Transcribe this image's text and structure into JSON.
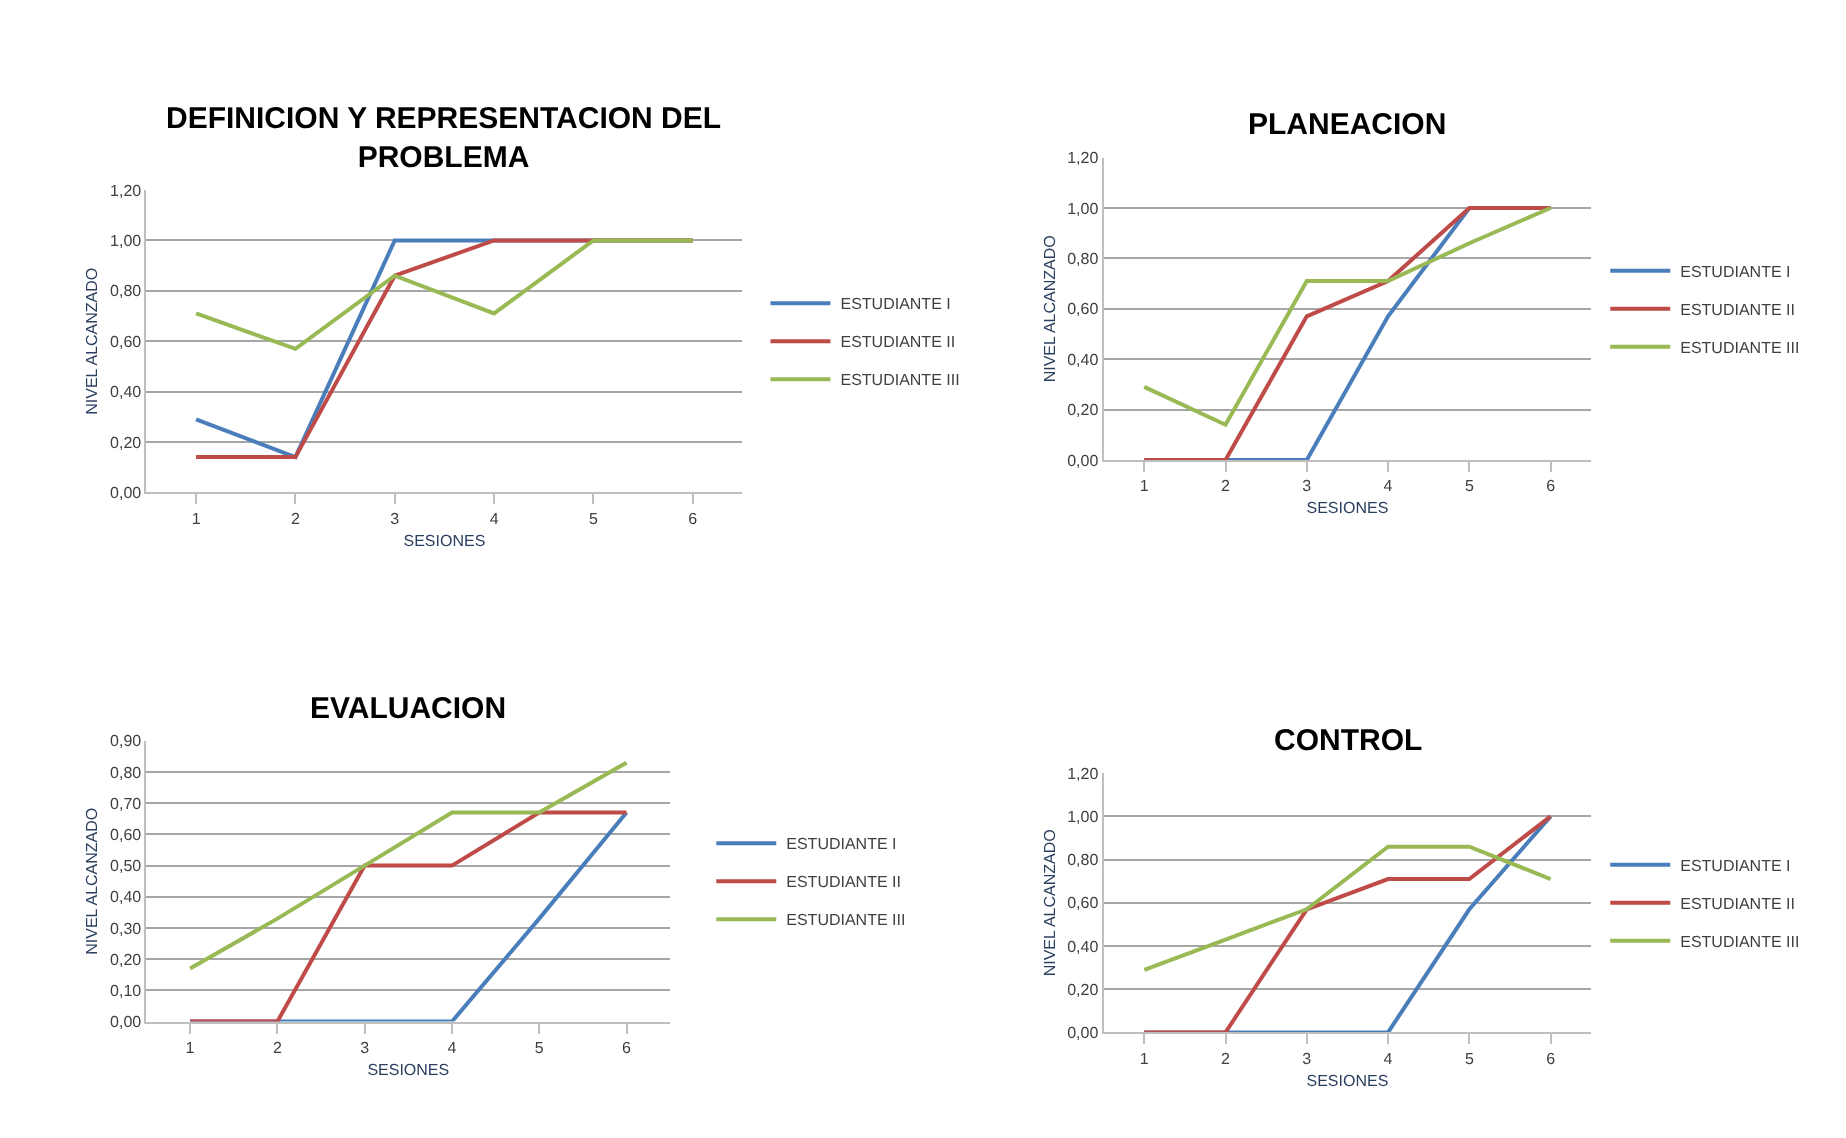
{
  "chart_data": [
    {
      "type": "line",
      "title": "DEFINICION Y REPRESENTACION DEL PROBLEMA",
      "xlabel": "SESIONES",
      "ylabel": "NIVEL ALCANZADO",
      "categories": [
        "1",
        "2",
        "3",
        "4",
        "5",
        "6"
      ],
      "ylim": [
        0,
        1.2
      ],
      "yticks": [
        {
          "value": 0,
          "label": "0,00"
        },
        {
          "value": 0.2,
          "label": "0,20"
        },
        {
          "value": 0.4,
          "label": "0,40"
        },
        {
          "value": 0.6,
          "label": "0,60"
        },
        {
          "value": 0.8,
          "label": "0,80"
        },
        {
          "value": 1.0,
          "label": "1,00"
        },
        {
          "value": 1.2,
          "label": "1,20"
        }
      ],
      "grid": "y",
      "legend": "right",
      "marker": "none",
      "series": [
        {
          "name": "ESTUDIANTE I",
          "color": "#4a7ebb",
          "values": [
            0.29,
            0.14,
            1.0,
            1.0,
            1.0,
            1.0
          ]
        },
        {
          "name": "ESTUDIANTE II",
          "color": "#be4b48",
          "values": [
            0.14,
            0.14,
            0.86,
            1.0,
            1.0,
            1.0
          ]
        },
        {
          "name": "ESTUDIANTE III",
          "color": "#98b954",
          "values": [
            0.71,
            0.57,
            0.86,
            0.71,
            1.0,
            1.0
          ]
        }
      ]
    },
    {
      "type": "line",
      "title": "PLANEACION",
      "xlabel": "SESIONES",
      "ylabel": "NIVEL ALCANZADO",
      "categories": [
        "1",
        "2",
        "3",
        "4",
        "5",
        "6"
      ],
      "ylim": [
        0,
        1.2
      ],
      "yticks": [
        {
          "value": 0,
          "label": "0,00"
        },
        {
          "value": 0.2,
          "label": "0,20"
        },
        {
          "value": 0.4,
          "label": "0,40"
        },
        {
          "value": 0.6,
          "label": "0,60"
        },
        {
          "value": 0.8,
          "label": "0,80"
        },
        {
          "value": 1.0,
          "label": "1,00"
        },
        {
          "value": 1.2,
          "label": "1,20"
        }
      ],
      "grid": "y",
      "legend": "right",
      "marker": "none",
      "series": [
        {
          "name": "ESTUDIANTE I",
          "color": "#4a7ebb",
          "values": [
            0,
            0,
            0,
            0.57,
            1.0,
            1.0
          ]
        },
        {
          "name": "ESTUDIANTE II",
          "color": "#be4b48",
          "values": [
            0,
            0,
            0.57,
            0.71,
            1.0,
            1.0
          ]
        },
        {
          "name": "ESTUDIANTE III",
          "color": "#98b954",
          "values": [
            0.29,
            0.14,
            0.71,
            0.71,
            0.86,
            1.0
          ]
        }
      ]
    },
    {
      "type": "line",
      "title": "EVALUACION",
      "xlabel": "SESIONES",
      "ylabel": "NIVEL ALCANZADO",
      "categories": [
        "1",
        "2",
        "3",
        "4",
        "5",
        "6"
      ],
      "ylim": [
        0,
        0.9
      ],
      "yticks": [
        {
          "value": 0,
          "label": "0,00"
        },
        {
          "value": 0.1,
          "label": "0,10"
        },
        {
          "value": 0.2,
          "label": "0,20"
        },
        {
          "value": 0.3,
          "label": "0,30"
        },
        {
          "value": 0.4,
          "label": "0,40"
        },
        {
          "value": 0.5,
          "label": "0,50"
        },
        {
          "value": 0.6,
          "label": "0,60"
        },
        {
          "value": 0.7,
          "label": "0,70"
        },
        {
          "value": 0.8,
          "label": "0,80"
        },
        {
          "value": 0.9,
          "label": "0,90"
        }
      ],
      "grid": "y",
      "legend": "right",
      "marker": "none",
      "series": [
        {
          "name": "ESTUDIANTE I",
          "color": "#4a7ebb",
          "values": [
            0,
            0,
            0,
            0,
            0.33,
            0.67
          ]
        },
        {
          "name": "ESTUDIANTE II",
          "color": "#be4b48",
          "values": [
            0,
            0,
            0.5,
            0.5,
            0.67,
            0.67
          ]
        },
        {
          "name": "ESTUDIANTE III",
          "color": "#98b954",
          "values": [
            0.17,
            0.33,
            0.5,
            0.67,
            0.67,
            0.83
          ]
        }
      ]
    },
    {
      "type": "line",
      "title": "CONTROL",
      "xlabel": "SESIONES",
      "ylabel": "NIVEL ALCANZADO",
      "categories": [
        "1",
        "2",
        "3",
        "4",
        "5",
        "6"
      ],
      "ylim": [
        0,
        1.2
      ],
      "yticks": [
        {
          "value": 0,
          "label": "0,00"
        },
        {
          "value": 0.2,
          "label": "0,20"
        },
        {
          "value": 0.4,
          "label": "0,40"
        },
        {
          "value": 0.6,
          "label": "0,60"
        },
        {
          "value": 0.8,
          "label": "0,80"
        },
        {
          "value": 1.0,
          "label": "1,00"
        },
        {
          "value": 1.2,
          "label": "1,20"
        }
      ],
      "grid": "y",
      "legend": "right",
      "marker": "none",
      "series": [
        {
          "name": "ESTUDIANTE I",
          "color": "#4a7ebb",
          "values": [
            0,
            0,
            0,
            0,
            0.57,
            1.0
          ]
        },
        {
          "name": "ESTUDIANTE II",
          "color": "#be4b48",
          "values": [
            0,
            0,
            0.57,
            0.71,
            0.71,
            1.0
          ]
        },
        {
          "name": "ESTUDIANTE III",
          "color": "#98b954",
          "values": [
            0.29,
            0.43,
            0.57,
            0.86,
            0.86,
            0.71
          ]
        }
      ]
    }
  ]
}
